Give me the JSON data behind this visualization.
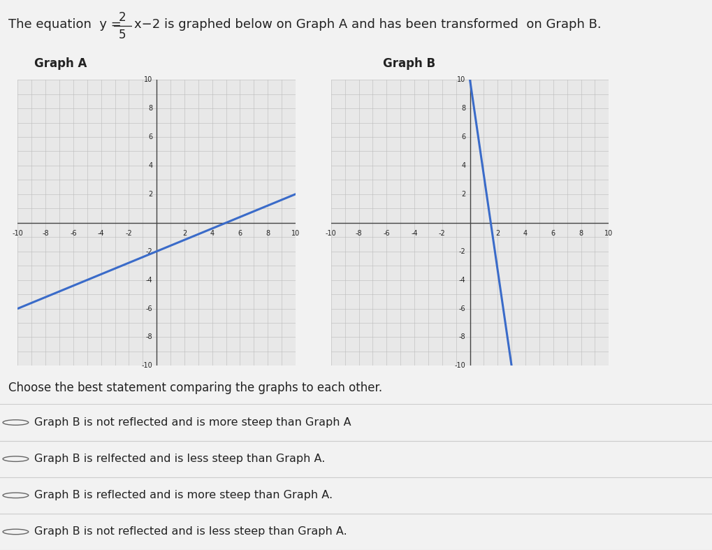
{
  "graph_a_label": "Graph A",
  "graph_b_label": "Graph B",
  "graph_a_slope": 0.4,
  "graph_a_intercept": -2,
  "graph_b_slope": -6.667,
  "graph_b_intercept": 10,
  "line_color": "#3a6bc9",
  "line_width": 2.2,
  "axis_range": [
    -10,
    10
  ],
  "grid_minor_color": "#bbbbbb",
  "grid_major_color": "#888888",
  "axis_line_color": "#444444",
  "bg_color": "#e8e8e8",
  "outer_bg": "#f2f2f2",
  "choices": [
    "Graph B is not reflected and is more steep than Graph A",
    "Graph B is relfected and is less steep than Graph A.",
    "Graph B is reflected and is more steep than Graph A.",
    "Graph B is not reflected and is less steep than Graph A."
  ],
  "choose_text": "Choose the best statement comparing the graphs to each other.",
  "radio_color": "#666666",
  "text_color": "#222222",
  "font_size_title": 13,
  "font_size_graph_label": 12,
  "font_size_axis_tick": 7,
  "font_size_choice": 11.5,
  "font_size_choose": 12
}
